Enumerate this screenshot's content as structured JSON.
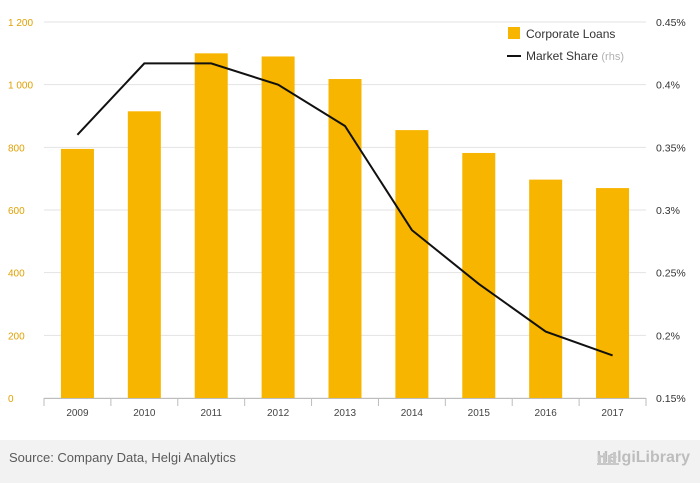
{
  "chart_data": {
    "type": "bar",
    "categories": [
      "2009",
      "2010",
      "2011",
      "2012",
      "2013",
      "2014",
      "2015",
      "2016",
      "2017"
    ],
    "series": [
      {
        "name": "Corporate Loans",
        "type": "bar",
        "axis": "left",
        "color": "#f7b500",
        "values": [
          795,
          915,
          1100,
          1090,
          1018,
          855,
          782,
          697,
          670
        ]
      },
      {
        "name": "Market Share",
        "name_suffix": "(rhs)",
        "type": "line",
        "axis": "right",
        "color": "#111111",
        "values": [
          0.36,
          0.417,
          0.417,
          0.4,
          0.367,
          0.284,
          0.241,
          0.203,
          0.184
        ]
      }
    ],
    "left_axis": {
      "ticks": [
        "0",
        "200",
        "400",
        "600",
        "800",
        "1 000",
        "1 200"
      ],
      "range": [
        0,
        1200
      ]
    },
    "right_axis": {
      "ticks": [
        "0.15%",
        "0.2%",
        "0.25%",
        "0.3%",
        "0.35%",
        "0.4%",
        "0.45%"
      ],
      "range": [
        0.15,
        0.45
      ]
    },
    "grid": true,
    "legend_position": "top-right"
  },
  "footer": {
    "source": "Source: Company Data, Helgi Analytics",
    "brand": "HelgiLibrary"
  },
  "colors": {
    "bar": "#f7b500",
    "line": "#111111",
    "left_tick_text": "#e0a000",
    "grid": "#e3e3e3"
  }
}
